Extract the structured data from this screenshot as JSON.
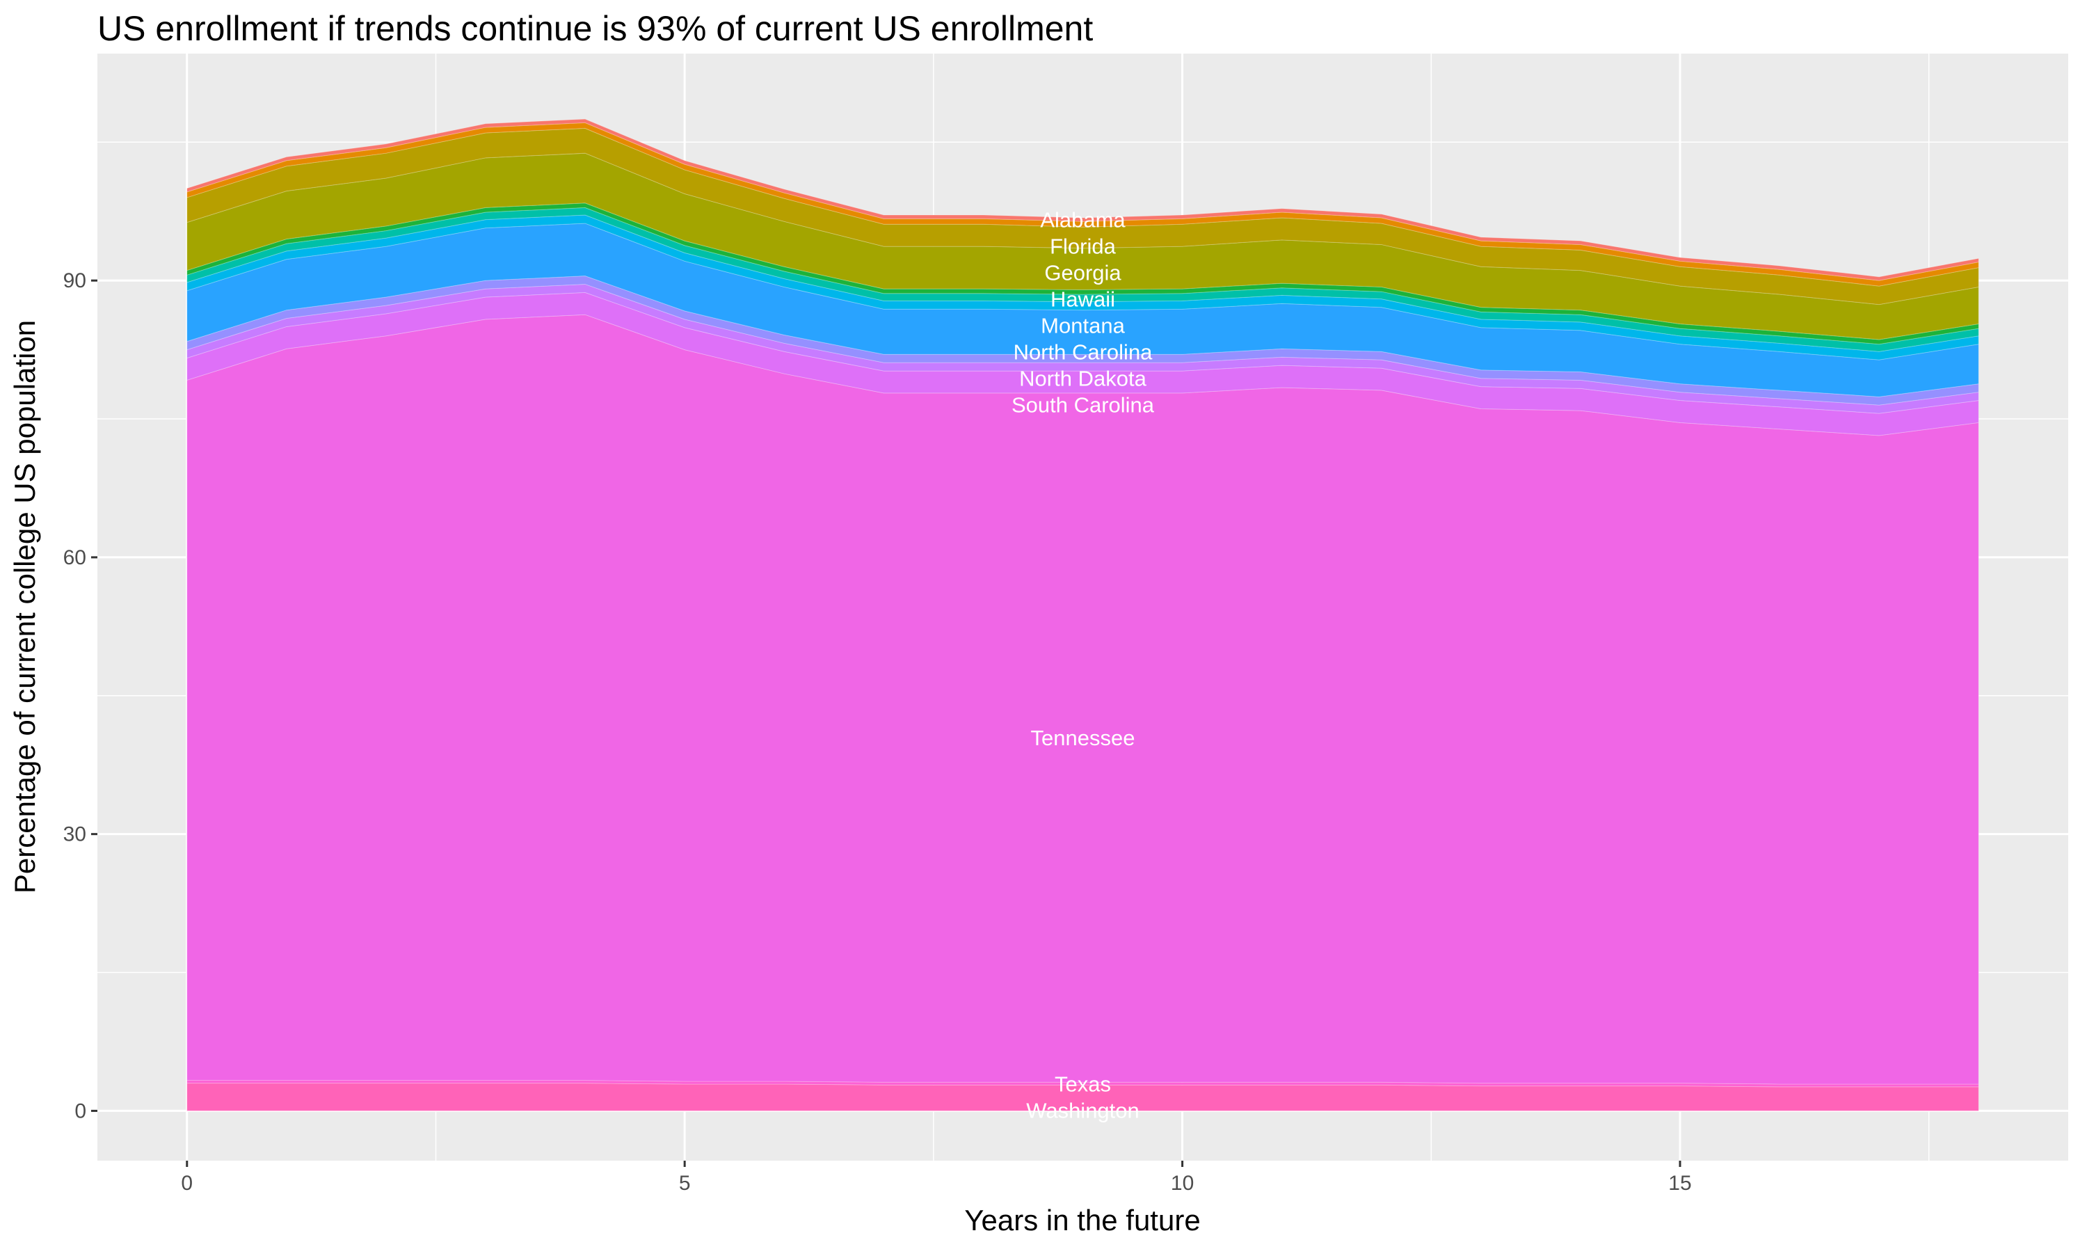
{
  "chart_data": {
    "type": "area",
    "stacked": true,
    "title": "US enrollment if trends continue is 93% of current US enrollment",
    "xlabel": "Years in the future",
    "ylabel": "Percentage of current college US population",
    "xlim": [
      -0.9,
      18.9
    ],
    "ylim": [
      -5.4,
      114.6
    ],
    "xticks": [
      0,
      5,
      10,
      15
    ],
    "yticks": [
      0,
      30,
      60,
      90
    ],
    "grid": true,
    "legend": "none",
    "label_x": 9,
    "x": [
      0,
      1,
      2,
      3,
      4,
      5,
      6,
      7,
      8,
      9,
      10,
      11,
      12,
      13,
      14,
      15,
      16,
      17,
      18
    ],
    "series": [
      {
        "name": "Washington",
        "color": "#FF63B8",
        "values": [
          3.0,
          3.0,
          3.0,
          3.0,
          3.0,
          2.9,
          2.9,
          2.8,
          2.8,
          2.8,
          2.8,
          2.8,
          2.8,
          2.7,
          2.7,
          2.7,
          2.6,
          2.6,
          2.6
        ]
      },
      {
        "name": "Texas",
        "color": "#FC61D4",
        "values": [
          0.3,
          0.3,
          0.3,
          0.3,
          0.3,
          0.3,
          0.3,
          0.3,
          0.3,
          0.3,
          0.3,
          0.3,
          0.3,
          0.3,
          0.3,
          0.3,
          0.3,
          0.3,
          0.3
        ]
      },
      {
        "name": "Tennessee",
        "color": "#F066E6",
        "values": [
          75.9,
          79.3,
          80.7,
          82.5,
          83.0,
          79.3,
          76.7,
          74.7,
          74.7,
          74.7,
          74.7,
          75.3,
          75.0,
          73.1,
          72.9,
          71.6,
          71.0,
          70.3,
          71.7
        ]
      },
      {
        "name": "South Carolina",
        "color": "#DE70F8",
        "values": [
          2.4,
          2.4,
          2.4,
          2.4,
          2.4,
          2.4,
          2.4,
          2.4,
          2.4,
          2.4,
          2.4,
          2.4,
          2.4,
          2.4,
          2.4,
          2.4,
          2.4,
          2.4,
          2.4
        ]
      },
      {
        "color": "#C77CFF",
        "values": [
          0.9,
          0.9,
          0.9,
          0.9,
          0.9,
          0.9,
          0.9,
          0.9,
          0.9,
          0.9,
          0.9,
          0.9,
          0.9,
          0.9,
          0.9,
          0.9,
          0.9,
          0.9,
          0.9
        ]
      },
      {
        "name": "North Dakota",
        "color": "#9590FF",
        "values": [
          0.9,
          0.9,
          0.9,
          0.9,
          0.9,
          0.9,
          0.9,
          0.9,
          0.9,
          0.9,
          0.9,
          0.9,
          0.9,
          0.9,
          0.9,
          0.9,
          0.9,
          0.9,
          0.9
        ]
      },
      {
        "name": "North Carolina",
        "color": "#29A3FF",
        "values": [
          5.5,
          5.5,
          5.5,
          5.7,
          5.7,
          5.4,
          5.2,
          4.9,
          4.9,
          4.8,
          4.9,
          4.9,
          4.8,
          4.6,
          4.5,
          4.3,
          4.2,
          4.0,
          4.3
        ]
      },
      {
        "color": "#00B6EB",
        "values": [
          0.9,
          0.9,
          0.9,
          0.9,
          0.9,
          0.9,
          0.9,
          0.9,
          0.9,
          0.9,
          0.9,
          0.9,
          0.9,
          0.9,
          0.9,
          0.9,
          0.9,
          0.9,
          0.9
        ]
      },
      {
        "name": "Montana",
        "color": "#00C0A8",
        "values": [
          0.8,
          0.8,
          0.8,
          0.8,
          0.8,
          0.8,
          0.8,
          0.8,
          0.8,
          0.8,
          0.8,
          0.8,
          0.8,
          0.8,
          0.8,
          0.8,
          0.8,
          0.8,
          0.8
        ]
      },
      {
        "name": "Hawaii",
        "color": "#1DB33A",
        "values": [
          0.5,
          0.5,
          0.5,
          0.5,
          0.5,
          0.5,
          0.5,
          0.5,
          0.5,
          0.5,
          0.5,
          0.5,
          0.5,
          0.5,
          0.5,
          0.5,
          0.5,
          0.5,
          0.5
        ]
      },
      {
        "name": "Georgia",
        "color": "#A3A500",
        "values": [
          5.2,
          5.2,
          5.2,
          5.4,
          5.4,
          5.1,
          4.9,
          4.6,
          4.6,
          4.5,
          4.6,
          4.7,
          4.6,
          4.4,
          4.3,
          4.1,
          4.0,
          3.8,
          4.0
        ]
      },
      {
        "name": "Florida",
        "color": "#B79F00",
        "values": [
          2.7,
          2.7,
          2.7,
          2.7,
          2.7,
          2.6,
          2.5,
          2.4,
          2.4,
          2.3,
          2.4,
          2.4,
          2.3,
          2.2,
          2.2,
          2.1,
          2.1,
          2.0,
          2.1
        ]
      },
      {
        "color": "#E58A00",
        "values": [
          0.6,
          0.6,
          0.6,
          0.6,
          0.6,
          0.6,
          0.6,
          0.6,
          0.6,
          0.6,
          0.6,
          0.6,
          0.6,
          0.6,
          0.6,
          0.6,
          0.6,
          0.6,
          0.6
        ]
      },
      {
        "name": "Alabama",
        "color": "#F8766D",
        "values": [
          0.4,
          0.4,
          0.4,
          0.4,
          0.4,
          0.4,
          0.4,
          0.4,
          0.4,
          0.4,
          0.4,
          0.4,
          0.4,
          0.4,
          0.4,
          0.4,
          0.4,
          0.4,
          0.4
        ]
      }
    ]
  }
}
